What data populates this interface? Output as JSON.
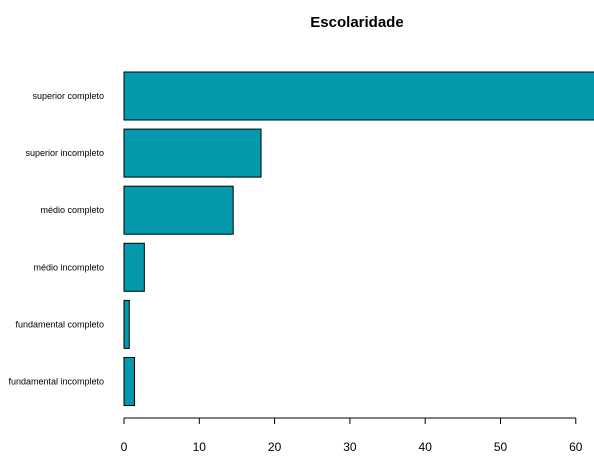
{
  "chart_data": {
    "type": "bar",
    "orientation": "horizontal",
    "title": "Escolaridade",
    "xlabel": "",
    "ylabel": "",
    "categories": [
      "superior completo",
      "superior incompleto",
      "médio completo",
      "médio incompleto",
      "fundamental completo",
      "fundamental incompleto"
    ],
    "values": [
      63,
      18.2,
      14.5,
      2.7,
      0.7,
      1.4
    ],
    "xlim": [
      0,
      62.5
    ],
    "xticks": [
      "0",
      "10",
      "20",
      "30",
      "40",
      "50",
      "60"
    ],
    "bar_color": "#0499ad",
    "grid": false,
    "legend": "none"
  }
}
